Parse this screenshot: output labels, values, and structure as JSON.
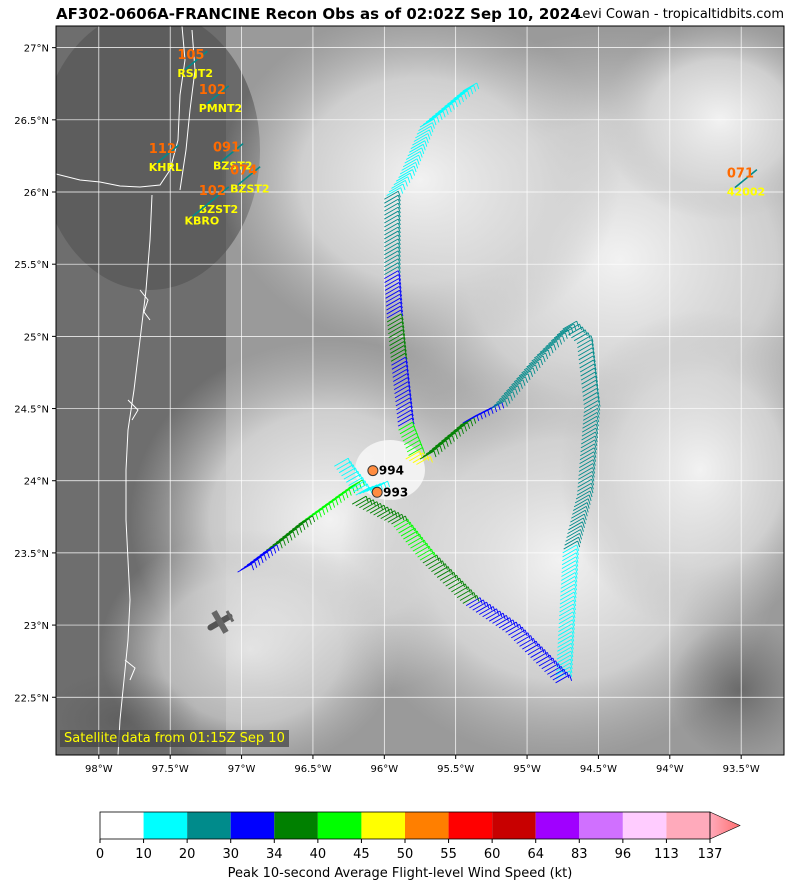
{
  "header": {
    "title": "AF302-0606A-FRANCINE Recon Obs as of 02:02Z Sep 10, 2024",
    "credit": "Levi Cowan - tropicaltidbits.com"
  },
  "map": {
    "lon_range": [
      -98.3,
      -93.2
    ],
    "lat_range": [
      22.1,
      27.15
    ],
    "lon_ticks": [
      "98°W",
      "97.5°W",
      "97°W",
      "96.5°W",
      "96°W",
      "95.5°W",
      "95°W",
      "94.5°W",
      "94°W",
      "93.5°W"
    ],
    "lat_ticks": [
      "27°N",
      "26.5°N",
      "26°N",
      "25.5°N",
      "25°N",
      "24.5°N",
      "24°N",
      "23.5°N",
      "23°N",
      "22.5°N"
    ],
    "satellite_note": "Satellite data from 01:15Z Sep 10",
    "pressure_obs": [
      {
        "label": "994",
        "lon": -96.08,
        "lat": 24.07
      },
      {
        "label": "993",
        "lon": -96.05,
        "lat": 23.92
      }
    ],
    "stations": [
      {
        "id": "RSJT2",
        "wind": "105",
        "lon": -97.45,
        "lat": 26.92
      },
      {
        "id": "PMNT2",
        "wind": "102",
        "lon": -97.3,
        "lat": 26.68
      },
      {
        "id": "KHRL",
        "wind": "112",
        "lon": -97.65,
        "lat": 26.27
      },
      {
        "id": "BZST2",
        "wind": "091",
        "lon": -97.2,
        "lat": 26.28
      },
      {
        "id": "BZST2",
        "wind": "074",
        "lon": -97.08,
        "lat": 26.12
      },
      {
        "id": "BZST2",
        "wind": "102",
        "lon": -97.3,
        "lat": 25.98
      },
      {
        "id": "KBRO",
        "wind": "",
        "lon": -97.4,
        "lat": 25.9
      },
      {
        "id": "42002",
        "wind": "071",
        "lon": -93.6,
        "lat": 26.1
      }
    ]
  },
  "colorbar": {
    "ticks": [
      "0",
      "10",
      "20",
      "30",
      "34",
      "40",
      "45",
      "50",
      "55",
      "60",
      "64",
      "83",
      "96",
      "113",
      "137"
    ],
    "colors": [
      "#ffffff",
      "#00ffff",
      "#008b8b",
      "#0000ff",
      "#008000",
      "#00ff00",
      "#ffff00",
      "#ff7f00",
      "#ff0000",
      "#c80000",
      "#a000ff",
      "#d070ff",
      "#ffccff",
      "#ffaabb"
    ],
    "label": "Peak 10-second Average Flight-level Wind Speed (kt)"
  },
  "flight_legs": [
    {
      "color": "#00ffff",
      "points": [
        [
          -95.45,
          26.7
        ],
        [
          -95.75,
          26.45
        ],
        [
          -95.9,
          26.1
        ],
        [
          -96.0,
          25.95
        ]
      ]
    },
    {
      "color": "#008b8b",
      "points": [
        [
          -96.0,
          25.95
        ],
        [
          -96.0,
          25.4
        ]
      ]
    },
    {
      "color": "#0000ff",
      "points": [
        [
          -96.0,
          25.4
        ],
        [
          -95.98,
          25.1
        ]
      ]
    },
    {
      "color": "#008000",
      "points": [
        [
          -95.98,
          25.1
        ],
        [
          -95.95,
          24.8
        ]
      ]
    },
    {
      "color": "#0000ff",
      "points": [
        [
          -95.95,
          24.8
        ],
        [
          -95.9,
          24.35
        ]
      ]
    },
    {
      "color": "#00ff00",
      "points": [
        [
          -95.9,
          24.35
        ],
        [
          -95.82,
          24.15
        ]
      ]
    },
    {
      "color": "#ffff00",
      "points": [
        [
          -95.85,
          24.15
        ],
        [
          -95.75,
          24.1
        ]
      ]
    },
    {
      "color": "#008000",
      "points": [
        [
          -95.75,
          24.15
        ],
        [
          -95.45,
          24.4
        ]
      ]
    },
    {
      "color": "#0000ff",
      "points": [
        [
          -95.45,
          24.4
        ],
        [
          -95.25,
          24.5
        ]
      ]
    },
    {
      "color": "#008b8b",
      "points": [
        [
          -95.25,
          24.5
        ],
        [
          -94.95,
          24.85
        ],
        [
          -94.75,
          25.05
        ],
        [
          -94.65,
          24.95
        ]
      ]
    },
    {
      "color": "#008b8b",
      "points": [
        [
          -94.65,
          24.95
        ],
        [
          -94.6,
          24.5
        ],
        [
          -94.65,
          23.9
        ],
        [
          -94.75,
          23.5
        ]
      ]
    },
    {
      "color": "#00ffff",
      "points": [
        [
          -94.75,
          23.5
        ],
        [
          -94.8,
          22.6
        ]
      ]
    },
    {
      "color": "#0000ff",
      "points": [
        [
          -94.8,
          22.6
        ],
        [
          -95.15,
          22.95
        ],
        [
          -95.45,
          23.15
        ]
      ]
    },
    {
      "color": "#008000",
      "points": [
        [
          -95.45,
          23.15
        ],
        [
          -95.75,
          23.45
        ]
      ]
    },
    {
      "color": "#00ff00",
      "points": [
        [
          -95.75,
          23.45
        ],
        [
          -95.95,
          23.7
        ]
      ]
    },
    {
      "color": "#008000",
      "points": [
        [
          -95.95,
          23.7
        ],
        [
          -96.25,
          23.85
        ]
      ]
    },
    {
      "color": "#00ff00",
      "points": [
        [
          -96.25,
          23.95
        ],
        [
          -96.6,
          23.7
        ]
      ]
    },
    {
      "color": "#008000",
      "points": [
        [
          -96.6,
          23.7
        ],
        [
          -96.85,
          23.5
        ]
      ]
    },
    {
      "color": "#0000ff",
      "points": [
        [
          -96.85,
          23.5
        ],
        [
          -97.05,
          23.35
        ]
      ]
    },
    {
      "color": "#00ffff",
      "points": [
        [
          -96.35,
          24.1
        ],
        [
          -96.2,
          23.9
        ],
        [
          -96.05,
          23.95
        ]
      ]
    }
  ]
}
